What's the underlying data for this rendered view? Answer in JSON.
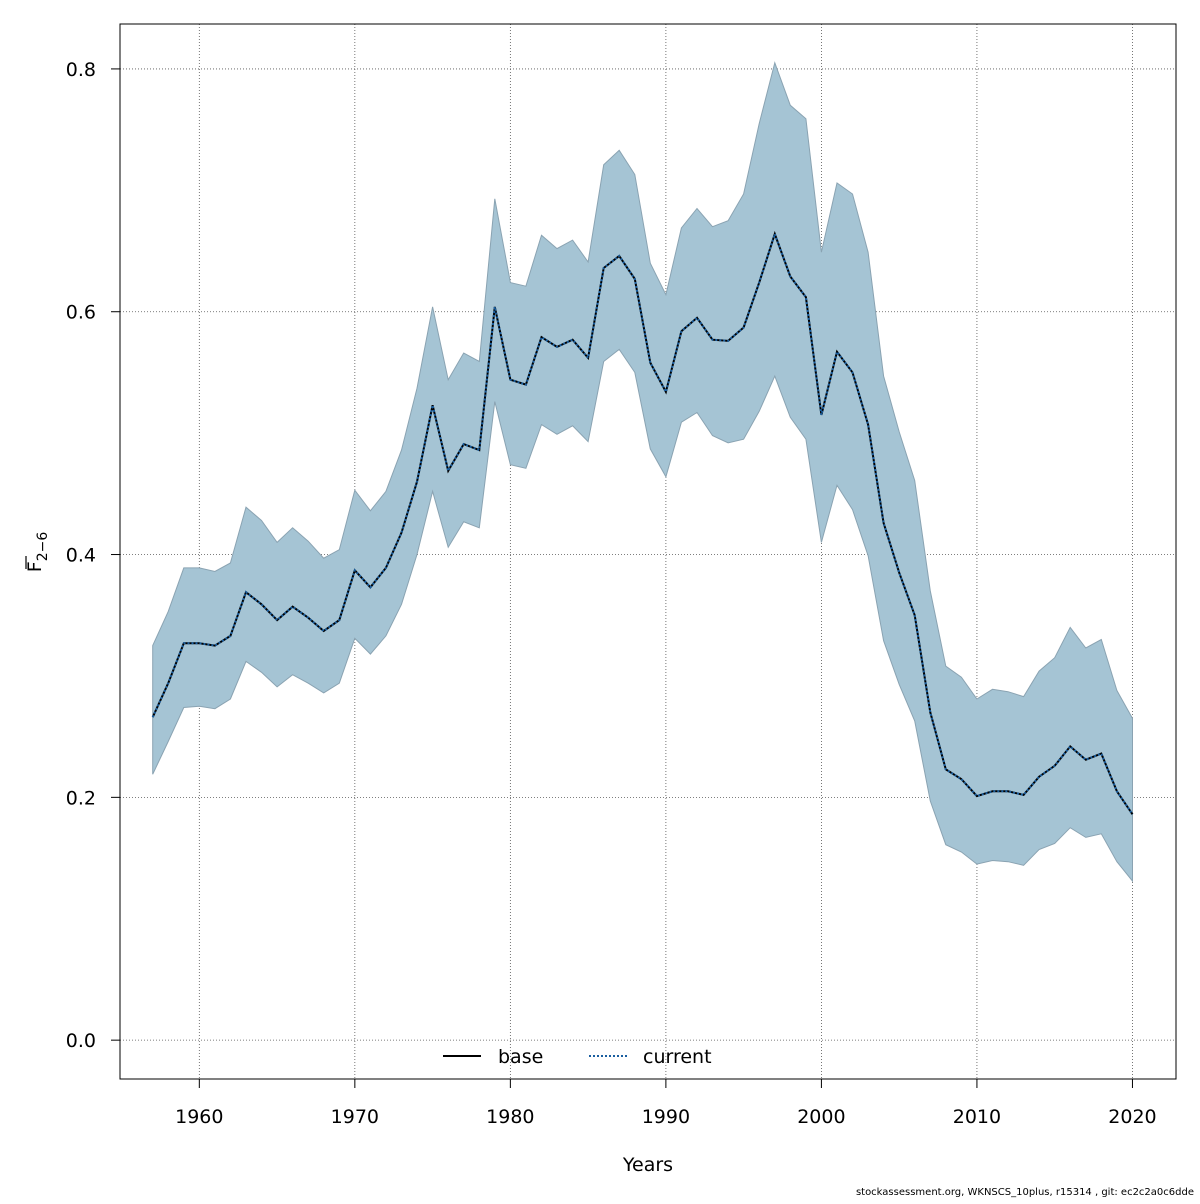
{
  "chart_data": {
    "type": "line",
    "title": "",
    "xlabel": "Years",
    "ylabel_base": "F",
    "ylabel_sub": "2−6",
    "xlim": [
      1954.9,
      2022.8
    ],
    "ylim": [
      -0.032,
      0.837
    ],
    "xticks": [
      1960,
      1970,
      1980,
      1990,
      2000,
      2010,
      2020
    ],
    "yticks": [
      0.0,
      0.2,
      0.4,
      0.6,
      0.8
    ],
    "ytick_labels": [
      "0.0",
      "0.2",
      "0.4",
      "0.6",
      "0.8"
    ],
    "grid": true,
    "legend_position": "bottom-center",
    "x": [
      1957,
      1958,
      1959,
      1960,
      1961,
      1962,
      1963,
      1964,
      1965,
      1966,
      1967,
      1968,
      1969,
      1970,
      1971,
      1972,
      1973,
      1974,
      1975,
      1976,
      1977,
      1978,
      1979,
      1980,
      1981,
      1982,
      1983,
      1984,
      1985,
      1986,
      1987,
      1988,
      1989,
      1990,
      1991,
      1992,
      1993,
      1994,
      1995,
      1996,
      1997,
      1998,
      1999,
      2000,
      2001,
      2002,
      2003,
      2004,
      2005,
      2006,
      2007,
      2008,
      2009,
      2010,
      2011,
      2012,
      2013,
      2014,
      2015,
      2016,
      2017,
      2018,
      2019,
      2020
    ],
    "series": [
      {
        "name": "base",
        "style": "solid",
        "color": "#000000",
        "values": [
          0.266,
          0.294,
          0.327,
          0.327,
          0.325,
          0.333,
          0.369,
          0.359,
          0.346,
          0.357,
          0.348,
          0.337,
          0.346,
          0.387,
          0.373,
          0.389,
          0.418,
          0.46,
          0.523,
          0.469,
          0.491,
          0.486,
          0.604,
          0.544,
          0.54,
          0.579,
          0.571,
          0.577,
          0.562,
          0.636,
          0.646,
          0.627,
          0.558,
          0.534,
          0.584,
          0.595,
          0.577,
          0.576,
          0.587,
          0.624,
          0.664,
          0.629,
          0.612,
          0.515,
          0.567,
          0.55,
          0.507,
          0.426,
          0.385,
          0.35,
          0.27,
          0.223,
          0.215,
          0.201,
          0.205,
          0.205,
          0.202,
          0.217,
          0.226,
          0.242,
          0.231,
          0.236,
          0.205,
          0.186
        ]
      },
      {
        "name": "current",
        "style": "dotted",
        "color": "#1a5fa0",
        "values": [
          0.266,
          0.294,
          0.327,
          0.327,
          0.325,
          0.333,
          0.369,
          0.359,
          0.346,
          0.357,
          0.348,
          0.337,
          0.346,
          0.387,
          0.373,
          0.389,
          0.418,
          0.46,
          0.523,
          0.469,
          0.491,
          0.486,
          0.604,
          0.544,
          0.54,
          0.579,
          0.571,
          0.577,
          0.562,
          0.636,
          0.646,
          0.627,
          0.558,
          0.534,
          0.584,
          0.595,
          0.577,
          0.576,
          0.587,
          0.624,
          0.664,
          0.629,
          0.612,
          0.515,
          0.567,
          0.55,
          0.507,
          0.426,
          0.385,
          0.35,
          0.27,
          0.223,
          0.215,
          0.201,
          0.205,
          0.205,
          0.202,
          0.217,
          0.226,
          0.242,
          0.231,
          0.236,
          0.205,
          0.186
        ]
      }
    ],
    "band": {
      "color": "#a5c4d4",
      "edge_color": "#8aa3b2",
      "upper": [
        0.325,
        0.353,
        0.389,
        0.389,
        0.386,
        0.393,
        0.439,
        0.428,
        0.41,
        0.422,
        0.411,
        0.397,
        0.404,
        0.453,
        0.436,
        0.452,
        0.486,
        0.537,
        0.604,
        0.544,
        0.566,
        0.559,
        0.693,
        0.624,
        0.621,
        0.663,
        0.652,
        0.659,
        0.641,
        0.721,
        0.733,
        0.713,
        0.64,
        0.614,
        0.669,
        0.685,
        0.67,
        0.675,
        0.697,
        0.755,
        0.805,
        0.77,
        0.759,
        0.649,
        0.706,
        0.697,
        0.649,
        0.547,
        0.501,
        0.461,
        0.37,
        0.308,
        0.299,
        0.281,
        0.289,
        0.287,
        0.283,
        0.304,
        0.315,
        0.34,
        0.323,
        0.33,
        0.288,
        0.265
      ],
      "lower": [
        0.219,
        0.246,
        0.274,
        0.275,
        0.273,
        0.281,
        0.312,
        0.303,
        0.291,
        0.301,
        0.294,
        0.286,
        0.294,
        0.331,
        0.318,
        0.333,
        0.359,
        0.4,
        0.452,
        0.406,
        0.427,
        0.422,
        0.526,
        0.474,
        0.471,
        0.507,
        0.499,
        0.506,
        0.493,
        0.559,
        0.569,
        0.55,
        0.487,
        0.464,
        0.509,
        0.517,
        0.498,
        0.492,
        0.495,
        0.518,
        0.547,
        0.513,
        0.495,
        0.41,
        0.457,
        0.437,
        0.399,
        0.329,
        0.293,
        0.263,
        0.197,
        0.161,
        0.155,
        0.145,
        0.148,
        0.147,
        0.144,
        0.157,
        0.162,
        0.175,
        0.167,
        0.17,
        0.147,
        0.131
      ]
    }
  },
  "footer": "stockassessment.org, WKNSCS_10plus, r15314 , git: ec2c2a0c6dde"
}
